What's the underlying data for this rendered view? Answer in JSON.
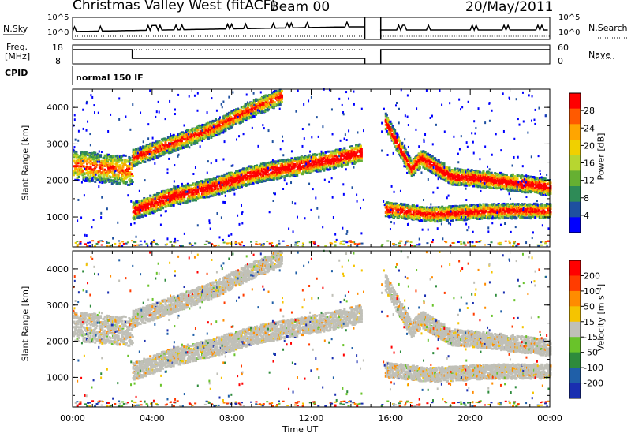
{
  "header": {
    "station": "Christmas Valley West (fitACF)",
    "beam": "Beam 00",
    "date": "20/May/2011"
  },
  "top_panels": {
    "nsky_label": "N.Sky",
    "nsky_ticks": [
      "10^5",
      "10^0"
    ],
    "nsearch_label": "N.Search",
    "nsearch_ticks": [
      "10^5",
      "10^0"
    ],
    "freq_label": "Freq.",
    "freq_unit": "[MHz]",
    "freq_ticks": [
      "18",
      "8"
    ],
    "nave_label": "Nave",
    "nave_ticks": [
      "60",
      "0"
    ],
    "cpid_label": "CPID",
    "cpid_value": "normal 150 IF"
  },
  "colors": {
    "power_scale": [
      "#0000ff",
      "#1e50a0",
      "#2e8b57",
      "#66b032",
      "#b7d630",
      "#f0d000",
      "#ffa500",
      "#ff5a00",
      "#ff0000"
    ],
    "velocity_scale": [
      "#1a2fb0",
      "#1f5fa8",
      "#2e8b3c",
      "#69c32a",
      "#c0c0b8",
      "#f5c400",
      "#ff8c00",
      "#ff3c00",
      "#ff0000"
    ]
  },
  "chart_data": [
    {
      "type": "heatmap",
      "title": "Power",
      "xlabel": "Time UT",
      "ylabel": "Slant Range [km]",
      "x_ticks": [
        "00:00",
        "04:00",
        "08:00",
        "12:00",
        "16:00",
        "20:00",
        "00:00"
      ],
      "y_ticks": [
        "1000",
        "2000",
        "3000",
        "4000"
      ],
      "ylim": [
        180,
        4500
      ],
      "colorbar_label": "Power [dB]",
      "colorbar_ticks": [
        "28",
        "24",
        "20",
        "16",
        "12",
        "8",
        "4"
      ],
      "data_gap_hours": [
        14.7,
        15.5
      ],
      "series": [
        {
          "band": "early",
          "x_hours": [
            0,
            1,
            2,
            3
          ],
          "range_km": [
            2400,
            2350,
            2300,
            2250
          ]
        },
        {
          "band": "lower",
          "x_hours": [
            3.0,
            5,
            7,
            9,
            11,
            13,
            14.5
          ],
          "range_km": [
            1150,
            1550,
            1800,
            2150,
            2350,
            2550,
            2750
          ]
        },
        {
          "band": "upper",
          "x_hours": [
            3.0,
            5,
            7,
            9,
            10.5
          ],
          "range_km": [
            2600,
            3000,
            3400,
            3950,
            4300
          ]
        },
        {
          "band": "evening",
          "x_hours": [
            15.7,
            17,
            17.5,
            19,
            21,
            24
          ],
          "range_km": [
            3600,
            2300,
            2600,
            2100,
            2000,
            1800
          ]
        },
        {
          "band": "evening-low",
          "x_hours": [
            15.7,
            18,
            21,
            24
          ],
          "range_km": [
            1200,
            1050,
            1150,
            1150
          ]
        }
      ]
    },
    {
      "type": "heatmap",
      "title": "Velocity",
      "xlabel": "Time UT",
      "ylabel": "Slant Range [km]",
      "x_ticks": [
        "00:00",
        "04:00",
        "08:00",
        "12:00",
        "16:00",
        "20:00",
        "00:00"
      ],
      "y_ticks": [
        "1000",
        "2000",
        "3000",
        "4000"
      ],
      "ylim": [
        180,
        4500
      ],
      "colorbar_label": "Velocity [m s⁻¹]",
      "colorbar_ticks": [
        "200",
        "100",
        "50",
        "15",
        "-15",
        "-50",
        "-100",
        "-200"
      ],
      "data_gap_hours": [
        14.7,
        15.5
      ]
    }
  ]
}
